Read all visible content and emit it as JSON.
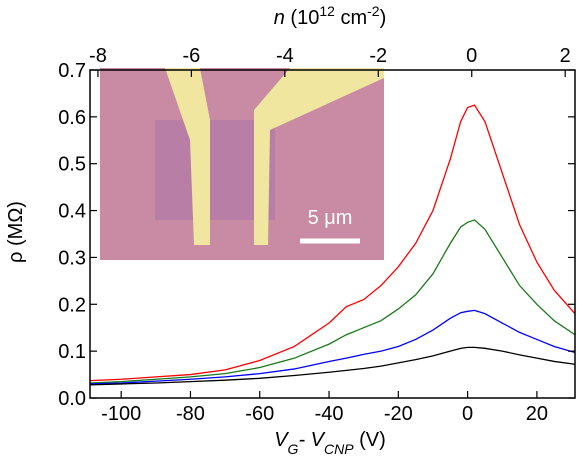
{
  "chart_data": {
    "type": "line",
    "xlabel": [
      "V",
      "G",
      "- V",
      "CNP",
      " (V)"
    ],
    "ylabel": "ρ (MΩ)",
    "x2label": [
      "n",
      " (10",
      "12",
      " cm",
      "-2",
      ")"
    ],
    "inset_label": "5 μm",
    "x": [
      -109,
      -100,
      -90,
      -80,
      -70,
      -60,
      -50,
      -40,
      -35,
      -30,
      -25,
      -20,
      -15,
      -10,
      -5,
      -2,
      0,
      2,
      5,
      10,
      15,
      20,
      25,
      31
    ],
    "series": [
      {
        "color": "#ff0000",
        "values": [
          0.037,
          0.04,
          0.045,
          0.05,
          0.06,
          0.08,
          0.11,
          0.16,
          0.195,
          0.21,
          0.24,
          0.28,
          0.33,
          0.4,
          0.51,
          0.59,
          0.62,
          0.625,
          0.59,
          0.48,
          0.37,
          0.29,
          0.23,
          0.18
        ]
      },
      {
        "color": "#1a7a1a",
        "values": [
          0.032,
          0.035,
          0.04,
          0.045,
          0.052,
          0.065,
          0.085,
          0.115,
          0.135,
          0.15,
          0.165,
          0.19,
          0.22,
          0.265,
          0.33,
          0.365,
          0.375,
          0.38,
          0.36,
          0.3,
          0.24,
          0.2,
          0.165,
          0.135
        ]
      },
      {
        "color": "#0000ff",
        "values": [
          0.03,
          0.032,
          0.036,
          0.04,
          0.045,
          0.052,
          0.062,
          0.078,
          0.085,
          0.093,
          0.1,
          0.11,
          0.125,
          0.145,
          0.17,
          0.182,
          0.185,
          0.187,
          0.18,
          0.16,
          0.14,
          0.125,
          0.11,
          0.097
        ]
      },
      {
        "color": "#000000",
        "values": [
          0.028,
          0.03,
          0.032,
          0.035,
          0.038,
          0.042,
          0.048,
          0.055,
          0.059,
          0.063,
          0.068,
          0.075,
          0.082,
          0.09,
          0.1,
          0.106,
          0.108,
          0.108,
          0.106,
          0.1,
          0.092,
          0.085,
          0.078,
          0.072
        ]
      }
    ],
    "xlim": [
      -109,
      31
    ],
    "xticks": [
      -100,
      -80,
      -60,
      -40,
      -20,
      0,
      20
    ],
    "x2lim": [
      -8.17,
      2.21
    ],
    "x2ticks": [
      -8,
      -6,
      -4,
      -2,
      0,
      2
    ],
    "ylim": [
      0,
      0.7
    ],
    "yticks": [
      {
        "value": 0,
        "label": "0.0"
      },
      0.1,
      0.2,
      0.3,
      0.4,
      0.5,
      0.6,
      0.7
    ]
  }
}
